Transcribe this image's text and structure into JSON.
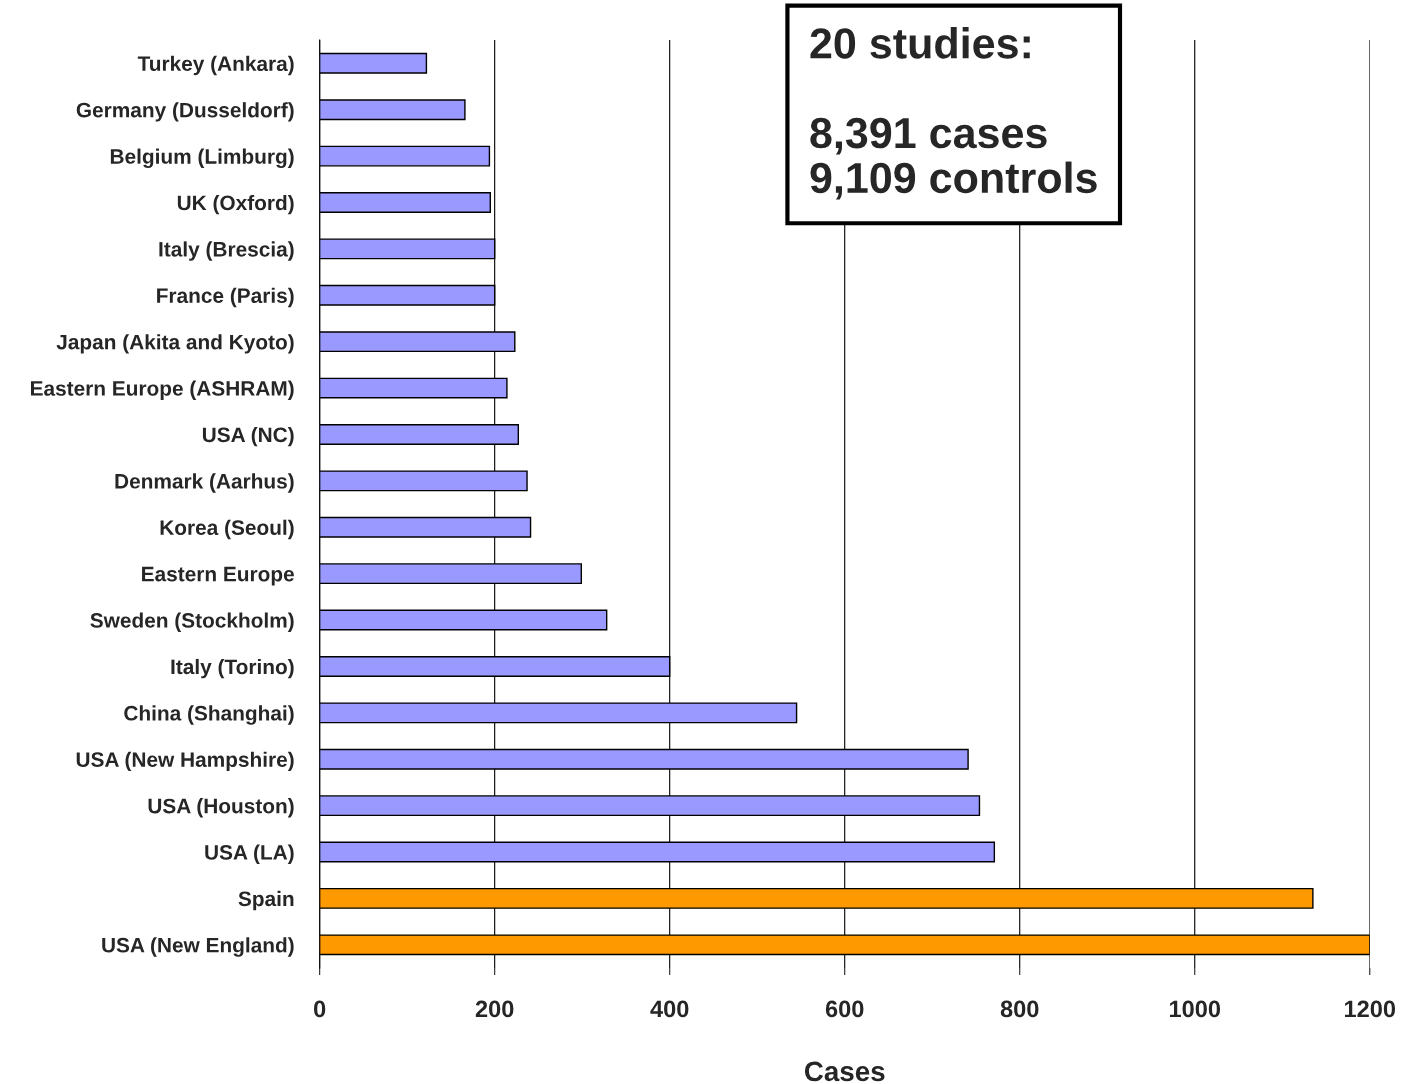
{
  "chart_data": {
    "type": "bar",
    "orientation": "horizontal",
    "xlabel": "Cases",
    "categories": [
      "Turkey (Ankara)",
      "Germany (Dusseldorf)",
      "Belgium (Limburg)",
      "UK (Oxford)",
      "Italy (Brescia)",
      "France (Paris)",
      "Japan (Akita and Kyoto)",
      "Eastern Europe (ASHRAM)",
      "USA (NC)",
      "Denmark (Aarhus)",
      "Korea (Seoul)",
      "Eastern Europe",
      "Sweden (Stockholm)",
      "Italy (Torino)",
      "China (Shanghai)",
      "USA (New Hampshire)",
      "USA (Houston)",
      "USA (LA)",
      "Spain",
      "USA (New England)"
    ],
    "values": [
      122,
      166,
      194,
      195,
      200,
      200,
      223,
      214,
      227,
      237,
      241,
      299,
      328,
      400,
      545,
      741,
      754,
      771,
      1135,
      1200
    ],
    "colors": [
      "#9999ff",
      "#9999ff",
      "#9999ff",
      "#9999ff",
      "#9999ff",
      "#9999ff",
      "#9999ff",
      "#9999ff",
      "#9999ff",
      "#9999ff",
      "#9999ff",
      "#9999ff",
      "#9999ff",
      "#9999ff",
      "#9999ff",
      "#9999ff",
      "#9999ff",
      "#9999ff",
      "#ff9900",
      "#ff9900"
    ],
    "xlim": [
      0,
      1200
    ],
    "xticks": [
      0,
      200,
      400,
      600,
      800,
      1000,
      1200
    ],
    "grid": "x",
    "legend": false,
    "annotations": [
      "20 studies:\n\n8,391 cases\n9,109 controls"
    ]
  }
}
